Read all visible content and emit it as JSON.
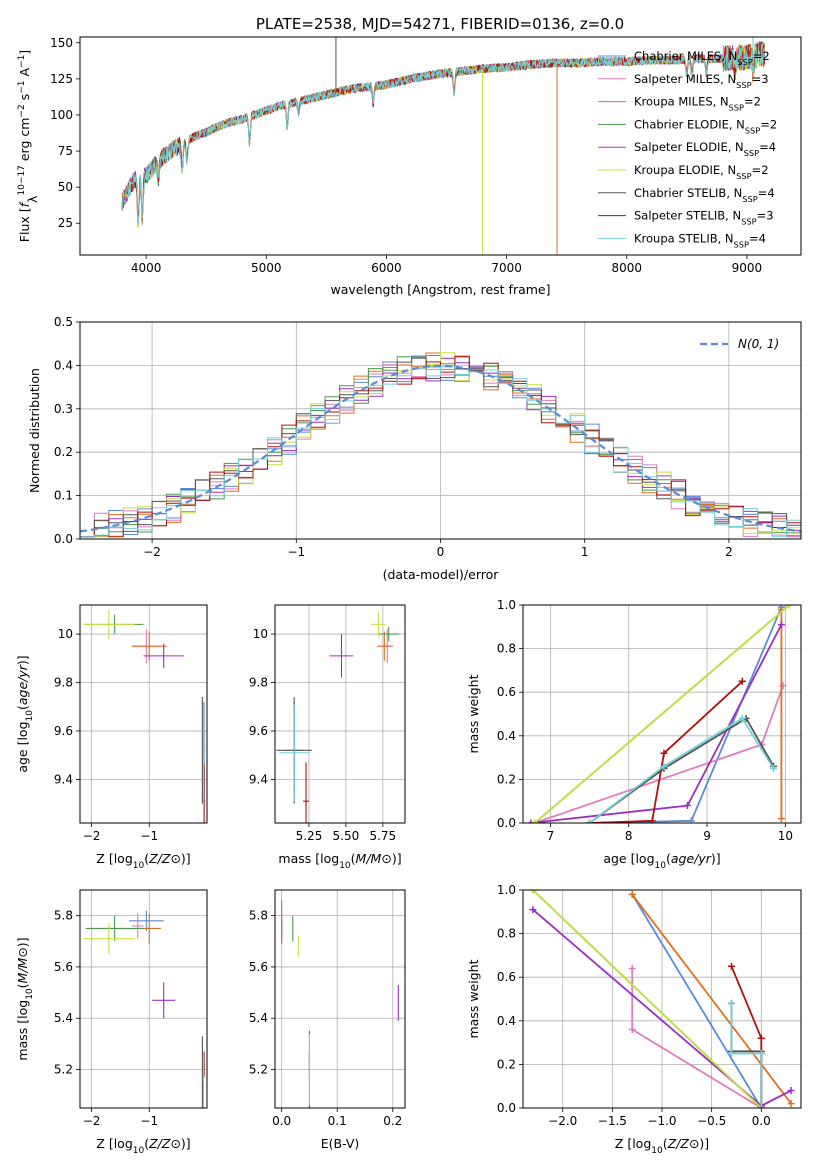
{
  "figure_title": "PLATE=2538, MJD=54271, FIBERID=0136, z=0.0",
  "colors": {
    "Chabrier MILES": "#5b8ad8",
    "Salpeter MILES": "#e07dbd",
    "Kroupa MILES": "#e07020",
    "Chabrier ELODIE": "#4a9a4a",
    "Salpeter ELODIE": "#9a30c0",
    "Kroupa ELODIE": "#c8e040",
    "Chabrier STELIB": "#555555",
    "Salpeter STELIB": "#b01010",
    "Kroupa STELIB": "#70d0d8"
  },
  "chart_data": [
    {
      "id": "spectrum",
      "type": "line",
      "xlabel": "wavelength [Angstrom, rest frame]",
      "ylabel_parts": [
        "Flux [",
        "f",
        "λ",
        "10",
        "−17",
        " erg cm",
        "−2",
        " s",
        "−1",
        " A",
        "−1",
        "]"
      ],
      "xlim": [
        3450,
        9450
      ],
      "ylim": [
        3,
        154
      ],
      "xticks": [
        4000,
        5000,
        6000,
        7000,
        8000,
        9000
      ],
      "yticks": [
        25,
        50,
        75,
        100,
        125,
        150
      ],
      "grid": false,
      "legend_position": "upper right",
      "x": [
        3800,
        3900,
        4000,
        4100,
        4200,
        4300,
        4400,
        4500,
        4600,
        4700,
        4800,
        4900,
        5000,
        5100,
        5200,
        5300,
        5400,
        5500,
        5600,
        5700,
        5800,
        5900,
        6000,
        6200,
        6400,
        6600,
        6800,
        7000,
        7200,
        7400,
        7600,
        7800,
        8000,
        8200,
        8400,
        8600,
        8800,
        9000,
        9100
      ],
      "y": [
        40,
        55,
        58,
        68,
        75,
        80,
        85,
        88,
        92,
        95,
        97,
        100,
        103,
        106,
        108,
        110,
        112,
        114,
        116,
        118,
        119,
        120,
        121,
        125,
        128,
        130,
        132,
        133,
        135,
        136,
        136,
        137,
        137,
        138,
        138,
        139,
        139,
        140,
        142
      ],
      "series": [
        {
          "name": "Chabrier MILES",
          "legend_parts": [
            "Chabrier MILES, N",
            "SSP",
            "=2"
          ]
        },
        {
          "name": "Salpeter MILES",
          "legend_parts": [
            "Salpeter MILES, N",
            "SSP",
            "=3"
          ]
        },
        {
          "name": "Kroupa MILES",
          "legend_parts": [
            "Kroupa MILES, N",
            "SSP",
            "=2"
          ]
        },
        {
          "name": "Chabrier ELODIE",
          "legend_parts": [
            "Chabrier ELODIE, N",
            "SSP",
            "=2"
          ]
        },
        {
          "name": "Salpeter ELODIE",
          "legend_parts": [
            "Salpeter ELODIE, N",
            "SSP",
            "=4"
          ]
        },
        {
          "name": "Kroupa ELODIE",
          "legend_parts": [
            "Kroupa ELODIE, N",
            "SSP",
            "=2"
          ]
        },
        {
          "name": "Chabrier STELIB",
          "legend_parts": [
            "Chabrier STELIB, N",
            "SSP",
            "=4"
          ]
        },
        {
          "name": "Salpeter STELIB",
          "legend_parts": [
            "Salpeter STELIB, N",
            "SSP",
            "=3"
          ]
        },
        {
          "name": "Kroupa STELIB",
          "legend_parts": [
            "Kroupa STELIB, N",
            "SSP",
            "=4"
          ]
        }
      ]
    },
    {
      "id": "histogram",
      "type": "line",
      "xlabel": "(data-model)/error",
      "ylabel": "Normed distribution",
      "xlim": [
        -2.5,
        2.5
      ],
      "ylim": [
        0,
        0.5
      ],
      "xticks": [
        -2,
        -1,
        0,
        1,
        2
      ],
      "xtick_labels": [
        "−2",
        "−1",
        "0",
        "1",
        "2"
      ],
      "yticks": [
        0.0,
        0.1,
        0.2,
        0.3,
        0.4,
        0.5
      ],
      "ytick_labels": [
        "0.0",
        "0.1",
        "0.2",
        "0.3",
        "0.4",
        "0.5"
      ],
      "grid": true,
      "legend_label": "N(0, 1)",
      "legend_position": "upper right",
      "bin_edges_from": -2.5,
      "bin_width": 0.1
    },
    {
      "id": "age_vs_Z",
      "type": "scatter",
      "xlabel": "Z [log10(Z/Z⊙)]",
      "ylabel": "age [log10(age/yr)]",
      "xlim": [
        -2.2,
        -0.0
      ],
      "ylim": [
        9.22,
        10.12
      ],
      "xticks": [
        -2,
        -1
      ],
      "xtick_labels": [
        "−2",
        "−1"
      ],
      "yticks": [
        9.4,
        9.6,
        9.8,
        10.0
      ],
      "grid": true,
      "points": [
        {
          "name": "Chabrier MILES",
          "x": -0.05,
          "y": 9.52,
          "xerr": 0.01,
          "yerr": 0.2
        },
        {
          "name": "Salpeter MILES",
          "x": -1.05,
          "y": 9.95,
          "xerr": 0.25,
          "yerr": 0.07
        },
        {
          "name": "Kroupa MILES",
          "x": -1.0,
          "y": 9.95,
          "xerr": 0.3,
          "yerr": 0.06
        },
        {
          "name": "Chabrier ELODIE",
          "x": -1.6,
          "y": 10.04,
          "xerr": 0.5,
          "yerr": 0.04
        },
        {
          "name": "Salpeter ELODIE",
          "x": -0.75,
          "y": 9.91,
          "xerr": 0.35,
          "yerr": 0.05
        },
        {
          "name": "Kroupa ELODIE",
          "x": -1.7,
          "y": 10.04,
          "xerr": 0.45,
          "yerr": 0.06
        },
        {
          "name": "Chabrier STELIB",
          "x": -0.08,
          "y": 9.52,
          "xerr": 0.01,
          "yerr": 0.22
        },
        {
          "name": "Salpeter STELIB",
          "x": -0.05,
          "y": 9.31,
          "xerr": 0.01,
          "yerr": 0.15
        },
        {
          "name": "Kroupa STELIB",
          "x": -0.06,
          "y": 9.52,
          "xerr": 0.01,
          "yerr": 0.2
        }
      ]
    },
    {
      "id": "age_vs_mass",
      "type": "scatter",
      "xlabel": "mass [log10(M/M⊙)]",
      "xlim": [
        5.02,
        5.9
      ],
      "ylim": [
        9.22,
        10.12
      ],
      "xticks": [
        5.25,
        5.5,
        5.75
      ],
      "xtick_labels": [
        "5.25",
        "5.50",
        "5.75"
      ],
      "yticks": [
        9.4,
        9.6,
        9.8,
        10.0
      ],
      "grid": true,
      "points": [
        {
          "name": "Chabrier MILES",
          "x": 5.15,
          "y": 9.52,
          "xerr": 0.06,
          "yerr": 0.2
        },
        {
          "name": "Salpeter MILES",
          "x": 5.78,
          "y": 9.95,
          "xerr": 0.04,
          "yerr": 0.07
        },
        {
          "name": "Kroupa MILES",
          "x": 5.76,
          "y": 9.95,
          "xerr": 0.05,
          "yerr": 0.06
        },
        {
          "name": "Chabrier ELODIE",
          "x": 5.79,
          "y": 10.0,
          "xerr": 0.07,
          "yerr": 0.03
        },
        {
          "name": "Salpeter ELODIE",
          "x": 5.47,
          "y": 9.91,
          "xerr": 0.08,
          "yerr": 0.09
        },
        {
          "name": "Kroupa ELODIE",
          "x": 5.72,
          "y": 10.04,
          "xerr": 0.05,
          "yerr": 0.05
        },
        {
          "name": "Chabrier STELIB",
          "x": 5.15,
          "y": 9.52,
          "xerr": 0.12,
          "yerr": 0.22
        },
        {
          "name": "Salpeter STELIB",
          "x": 5.23,
          "y": 9.31,
          "xerr": 0.02,
          "yerr": 0.16
        },
        {
          "name": "Kroupa STELIB",
          "x": 5.15,
          "y": 9.51,
          "xerr": 0.1,
          "yerr": 0.2
        }
      ]
    },
    {
      "id": "mass_weight_vs_age",
      "type": "line",
      "xlabel": "age [log10(age/yr)]",
      "ylabel": "mass weight",
      "xlim": [
        6.65,
        10.2
      ],
      "ylim": [
        0,
        1
      ],
      "xticks": [
        7,
        8,
        9,
        10
      ],
      "yticks": [
        0.0,
        0.2,
        0.4,
        0.6,
        0.8,
        1.0
      ],
      "ytick_labels": [
        "0.0",
        "0.2",
        "0.4",
        "0.6",
        "0.8",
        "1.0"
      ],
      "grid": true,
      "series": [
        {
          "name": "Chabrier MILES",
          "x": [
            7.5,
            8.8,
            9.95
          ],
          "y": [
            0.0,
            0.01,
            0.99
          ]
        },
        {
          "name": "Salpeter MILES",
          "x": [
            6.8,
            9.7,
            9.97
          ],
          "y": [
            0.0,
            0.36,
            0.63
          ]
        },
        {
          "name": "Kroupa MILES",
          "x": [
            9.95,
            9.95
          ],
          "y": [
            0.02,
            0.98
          ]
        },
        {
          "name": "Chabrier ELODIE",
          "x": [
            6.8,
            10.05
          ],
          "y": [
            0.0,
            1.0
          ]
        },
        {
          "name": "Salpeter ELODIE",
          "x": [
            6.75,
            8.75,
            9.95
          ],
          "y": [
            0.0,
            0.08,
            0.91
          ]
        },
        {
          "name": "Kroupa ELODIE",
          "x": [
            6.8,
            10.05
          ],
          "y": [
            0.0,
            1.0
          ]
        },
        {
          "name": "Chabrier STELIB",
          "x": [
            7.5,
            8.45,
            9.5,
            9.85
          ],
          "y": [
            0.0,
            0.25,
            0.48,
            0.26
          ]
        },
        {
          "name": "Salpeter STELIB",
          "x": [
            7.5,
            8.3,
            8.45,
            9.45
          ],
          "y": [
            0.0,
            0.01,
            0.32,
            0.65
          ]
        },
        {
          "name": "Kroupa STELIB",
          "x": [
            7.5,
            8.45,
            9.45,
            9.85
          ],
          "y": [
            0.0,
            0.26,
            0.48,
            0.25
          ]
        }
      ]
    },
    {
      "id": "mass_vs_Z",
      "type": "scatter",
      "xlabel": "Z [log10(Z/Z⊙)]",
      "ylabel": "mass [log10(M/M⊙)]",
      "xlim": [
        -2.2,
        -0.0
      ],
      "ylim": [
        5.05,
        5.9
      ],
      "xticks": [
        -2,
        -1
      ],
      "xtick_labels": [
        "−2",
        "−1"
      ],
      "yticks": [
        5.2,
        5.4,
        5.6,
        5.8
      ],
      "grid": true,
      "points": [
        {
          "name": "Chabrier MILES",
          "x": -1.05,
          "y": 5.78,
          "xerr": 0.3,
          "yerr": 0.04
        },
        {
          "name": "Salpeter MILES",
          "x": -1.2,
          "y": 5.76,
          "xerr": 0.1,
          "yerr": 0.05
        },
        {
          "name": "Kroupa MILES",
          "x": -1.0,
          "y": 5.75,
          "xerr": 0.2,
          "yerr": 0.06
        },
        {
          "name": "Chabrier ELODIE",
          "x": -1.6,
          "y": 5.75,
          "xerr": 0.5,
          "yerr": 0.05
        },
        {
          "name": "Salpeter ELODIE",
          "x": -0.75,
          "y": 5.47,
          "xerr": 0.2,
          "yerr": 0.07
        },
        {
          "name": "Kroupa ELODIE",
          "x": -1.7,
          "y": 5.71,
          "xerr": 0.45,
          "yerr": 0.06
        },
        {
          "name": "Chabrier STELIB",
          "x": -0.08,
          "y": 5.13,
          "xerr": 0.01,
          "yerr": 0.2
        },
        {
          "name": "Salpeter STELIB",
          "x": -0.05,
          "y": 5.22,
          "xerr": 0.01,
          "yerr": 0.05
        },
        {
          "name": "Kroupa STELIB",
          "x": -0.06,
          "y": 5.15,
          "xerr": 0.01,
          "yerr": 0.12
        }
      ]
    },
    {
      "id": "mass_vs_ebv",
      "type": "scatter",
      "xlabel": "E(B-V)",
      "xlim": [
        -0.012,
        0.222
      ],
      "ylim": [
        5.05,
        5.9
      ],
      "xticks": [
        0.0,
        0.1,
        0.2
      ],
      "xtick_labels": [
        "0.0",
        "0.1",
        "0.2"
      ],
      "yticks": [
        5.2,
        5.4,
        5.6,
        5.8
      ],
      "grid": true,
      "points": [
        {
          "name": "Chabrier MILES",
          "x": 0.0,
          "y": 5.78,
          "xerr": 0,
          "yerr": 0.08
        },
        {
          "name": "Salpeter MILES",
          "x": 0.0,
          "y": 5.76,
          "xerr": 0,
          "yerr": 0.05
        },
        {
          "name": "Kroupa MILES",
          "x": 0.0,
          "y": 5.75,
          "xerr": 0,
          "yerr": 0.06
        },
        {
          "name": "Chabrier ELODIE",
          "x": 0.02,
          "y": 5.75,
          "xerr": 0,
          "yerr": 0.05
        },
        {
          "name": "Salpeter ELODIE",
          "x": 0.21,
          "y": 5.46,
          "xerr": 0,
          "yerr": 0.07
        },
        {
          "name": "Kroupa ELODIE",
          "x": 0.03,
          "y": 5.68,
          "xerr": 0,
          "yerr": 0.04
        },
        {
          "name": "Chabrier STELIB",
          "x": 0.05,
          "y": 5.2,
          "xerr": 0,
          "yerr": 0.15
        },
        {
          "name": "Salpeter STELIB",
          "x": 0.05,
          "y": 5.22,
          "xerr": 0,
          "yerr": 0.05
        },
        {
          "name": "Kroupa STELIB",
          "x": 0.05,
          "y": 5.2,
          "xerr": 0,
          "yerr": 0.14
        }
      ]
    },
    {
      "id": "mass_weight_vs_Z",
      "type": "line",
      "xlabel": "Z [log10(Z/Z⊙)]",
      "ylabel": "mass weight",
      "xlim": [
        -2.4,
        0.4
      ],
      "ylim": [
        0,
        1
      ],
      "xticks": [
        -2.0,
        -1.5,
        -1.0,
        -0.5,
        0.0
      ],
      "xtick_labels": [
        "−2.0",
        "−1.5",
        "−1.0",
        "−0.5",
        "0.0"
      ],
      "yticks": [
        0.0,
        0.2,
        0.4,
        0.6,
        0.8,
        1.0
      ],
      "ytick_labels": [
        "0.0",
        "0.2",
        "0.4",
        "0.6",
        "0.8",
        "1.0"
      ],
      "grid": true,
      "series": [
        {
          "name": "Chabrier MILES",
          "x": [
            -1.3,
            0.0
          ],
          "y": [
            0.98,
            0.0
          ]
        },
        {
          "name": "Salpeter MILES",
          "x": [
            -1.3,
            -1.3,
            0.0
          ],
          "y": [
            0.64,
            0.36,
            0.0
          ]
        },
        {
          "name": "Kroupa MILES",
          "x": [
            -1.3,
            0.3
          ],
          "y": [
            0.98,
            0.02
          ]
        },
        {
          "name": "Chabrier ELODIE",
          "x": [
            -2.3,
            0.0
          ],
          "y": [
            1.0,
            0.0
          ]
        },
        {
          "name": "Salpeter ELODIE",
          "x": [
            -2.3,
            0.0,
            0.3
          ],
          "y": [
            0.91,
            0.01,
            0.08
          ]
        },
        {
          "name": "Kroupa ELODIE",
          "x": [
            -2.3,
            0.0
          ],
          "y": [
            1.0,
            0.0
          ]
        },
        {
          "name": "Chabrier STELIB",
          "x": [
            -0.3,
            -0.3,
            0.0,
            0.0
          ],
          "y": [
            0.48,
            0.26,
            0.26,
            0.0
          ]
        },
        {
          "name": "Salpeter STELIB",
          "x": [
            -0.3,
            0.0,
            0.0
          ],
          "y": [
            0.65,
            0.32,
            0.0
          ]
        },
        {
          "name": "Kroupa STELIB",
          "x": [
            -0.3,
            -0.3,
            0.0,
            0.0
          ],
          "y": [
            0.48,
            0.25,
            0.25,
            0.0
          ]
        }
      ]
    }
  ]
}
